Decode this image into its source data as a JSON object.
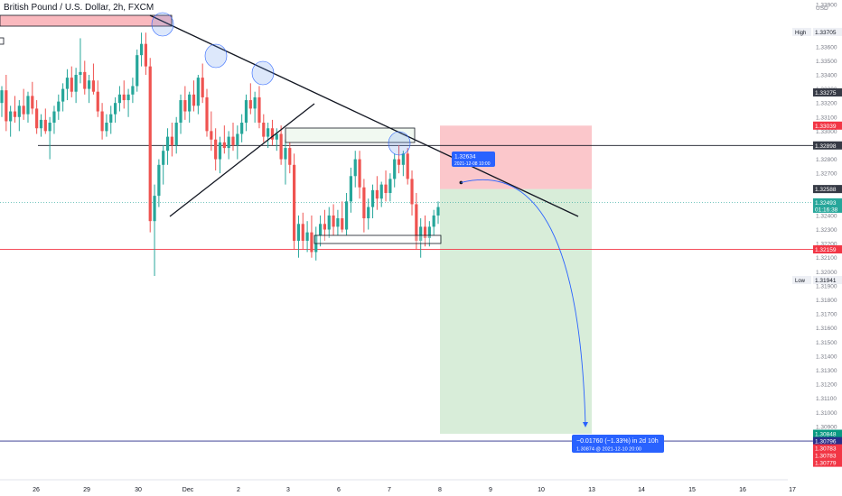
{
  "chart_data": {
    "type": "candlestick",
    "title": "British Pound / U.S. Dollar, 2h, FXCM",
    "currency": "USD",
    "ylim": [
      1.3076,
      1.339
    ],
    "x_ticks": [
      "26",
      "29",
      "30",
      "Dec",
      "2",
      "3",
      "6",
      "7",
      "8",
      "9",
      "10",
      "13",
      "14",
      "15",
      "16",
      "17"
    ],
    "y_ticks": [
      "1.33900",
      "1.33705",
      "1.33600",
      "1.33500",
      "1.33400",
      "1.33300",
      "1.33275",
      "1.33200",
      "1.33100",
      "1.33039",
      "1.33000",
      "1.32898",
      "1.32800",
      "1.32700",
      "1.32588",
      "1.32493",
      "1.32400",
      "1.32300",
      "1.32200",
      "1.32159",
      "1.32100",
      "1.32000",
      "1.31941",
      "1.31900",
      "1.31800",
      "1.31700",
      "1.31600",
      "1.31500",
      "1.31400",
      "1.31300",
      "1.31200",
      "1.31100",
      "1.31000",
      "1.30900",
      "1.30848",
      "1.30796",
      "1.30783",
      "1.30779"
    ],
    "badges": [
      {
        "label": "High",
        "value": "1.33705",
        "kind": "plain"
      },
      {
        "label": "",
        "value": "1.33275",
        "kind": "dark"
      },
      {
        "label": "",
        "value": "1.33039",
        "kind": "red"
      },
      {
        "label": "",
        "value": "1.32898",
        "kind": "dark"
      },
      {
        "label": "",
        "value": "1.32588",
        "kind": "dark"
      },
      {
        "label": "",
        "value": "1.32493",
        "sub": "01:16:38",
        "kind": "teal"
      },
      {
        "label": "",
        "value": "1.32159",
        "kind": "red"
      },
      {
        "label": "Low",
        "value": "1.31941",
        "kind": "plain"
      },
      {
        "label": "",
        "value": "1.30848",
        "kind": "green"
      },
      {
        "label": "",
        "value": "1.30796",
        "kind": "navy"
      },
      {
        "label": "",
        "value": "1.30783",
        "kind": "red"
      },
      {
        "label": "",
        "value": "1.30783",
        "kind": "red"
      },
      {
        "label": "",
        "value": "1.30779",
        "kind": "red"
      }
    ],
    "horizontal_levels": [
      {
        "value": 1.32898,
        "color": "#131722"
      },
      {
        "value": 1.32159,
        "color": "#f23645"
      },
      {
        "value": 1.30796,
        "color": "#2a2e8a"
      }
    ],
    "position": {
      "direction": "short",
      "entry": 1.32588,
      "stop": 1.33039,
      "target": 1.30848,
      "start_time": "2021-12-08 00:00",
      "end_time": "2021-12-13 00:00"
    },
    "entry_label": {
      "price": "1.32634",
      "time": "2021-12-08 10:00"
    },
    "target_label": {
      "change": "−0.01760 (−1.33%) in 2d 10h",
      "detail": "1.30874 @ 2021-12-10 20:00"
    },
    "candles": [
      {
        "o": 1.332,
        "h": 1.3332,
        "l": 1.331,
        "c": 1.3329
      },
      {
        "o": 1.3329,
        "h": 1.334,
        "l": 1.33,
        "c": 1.3307
      },
      {
        "o": 1.3307,
        "h": 1.3318,
        "l": 1.3296,
        "c": 1.3314
      },
      {
        "o": 1.3314,
        "h": 1.3325,
        "l": 1.3306,
        "c": 1.331
      },
      {
        "o": 1.331,
        "h": 1.3322,
        "l": 1.33,
        "c": 1.3318
      },
      {
        "o": 1.3318,
        "h": 1.333,
        "l": 1.3308,
        "c": 1.3312
      },
      {
        "o": 1.3312,
        "h": 1.3328,
        "l": 1.3306,
        "c": 1.3325
      },
      {
        "o": 1.3325,
        "h": 1.3335,
        "l": 1.3312,
        "c": 1.3316
      },
      {
        "o": 1.3316,
        "h": 1.3322,
        "l": 1.3298,
        "c": 1.3302
      },
      {
        "o": 1.3302,
        "h": 1.3312,
        "l": 1.3296,
        "c": 1.3308
      },
      {
        "o": 1.3308,
        "h": 1.3316,
        "l": 1.3298,
        "c": 1.33
      },
      {
        "o": 1.33,
        "h": 1.331,
        "l": 1.328,
        "c": 1.3306
      },
      {
        "o": 1.3306,
        "h": 1.3318,
        "l": 1.3298,
        "c": 1.3314
      },
      {
        "o": 1.3314,
        "h": 1.3326,
        "l": 1.3308,
        "c": 1.3321
      },
      {
        "o": 1.3321,
        "h": 1.3334,
        "l": 1.3314,
        "c": 1.333
      },
      {
        "o": 1.333,
        "h": 1.3344,
        "l": 1.3322,
        "c": 1.3338
      },
      {
        "o": 1.3338,
        "h": 1.3346,
        "l": 1.3324,
        "c": 1.3328
      },
      {
        "o": 1.3328,
        "h": 1.3345,
        "l": 1.332,
        "c": 1.334
      },
      {
        "o": 1.334,
        "h": 1.3366,
        "l": 1.3334,
        "c": 1.3342
      },
      {
        "o": 1.3342,
        "h": 1.335,
        "l": 1.3326,
        "c": 1.333
      },
      {
        "o": 1.333,
        "h": 1.334,
        "l": 1.332,
        "c": 1.3336
      },
      {
        "o": 1.3336,
        "h": 1.3348,
        "l": 1.3326,
        "c": 1.3328
      },
      {
        "o": 1.3328,
        "h": 1.3336,
        "l": 1.331,
        "c": 1.3314
      },
      {
        "o": 1.3314,
        "h": 1.332,
        "l": 1.3294,
        "c": 1.33
      },
      {
        "o": 1.33,
        "h": 1.3312,
        "l": 1.3296,
        "c": 1.3306
      },
      {
        "o": 1.3306,
        "h": 1.3318,
        "l": 1.3298,
        "c": 1.3312
      },
      {
        "o": 1.3312,
        "h": 1.3324,
        "l": 1.3306,
        "c": 1.332
      },
      {
        "o": 1.332,
        "h": 1.3332,
        "l": 1.3314,
        "c": 1.3326
      },
      {
        "o": 1.3326,
        "h": 1.3336,
        "l": 1.3316,
        "c": 1.3322
      },
      {
        "o": 1.3322,
        "h": 1.333,
        "l": 1.331,
        "c": 1.3326
      },
      {
        "o": 1.3326,
        "h": 1.3338,
        "l": 1.332,
        "c": 1.3332
      },
      {
        "o": 1.3332,
        "h": 1.3358,
        "l": 1.3328,
        "c": 1.3354
      },
      {
        "o": 1.3354,
        "h": 1.337,
        "l": 1.3346,
        "c": 1.3362
      },
      {
        "o": 1.3362,
        "h": 1.337,
        "l": 1.334,
        "c": 1.3346
      },
      {
        "o": 1.3346,
        "h": 1.3352,
        "l": 1.3228,
        "c": 1.3236
      },
      {
        "o": 1.3236,
        "h": 1.3262,
        "l": 1.3197,
        "c": 1.3254
      },
      {
        "o": 1.3254,
        "h": 1.328,
        "l": 1.3246,
        "c": 1.3276
      },
      {
        "o": 1.3276,
        "h": 1.329,
        "l": 1.3262,
        "c": 1.3286
      },
      {
        "o": 1.3286,
        "h": 1.3302,
        "l": 1.3276,
        "c": 1.3296
      },
      {
        "o": 1.3296,
        "h": 1.3306,
        "l": 1.3282,
        "c": 1.329
      },
      {
        "o": 1.329,
        "h": 1.331,
        "l": 1.3284,
        "c": 1.3306
      },
      {
        "o": 1.3306,
        "h": 1.3326,
        "l": 1.3298,
        "c": 1.3322
      },
      {
        "o": 1.3322,
        "h": 1.3332,
        "l": 1.3308,
        "c": 1.3314
      },
      {
        "o": 1.3314,
        "h": 1.3328,
        "l": 1.3306,
        "c": 1.3326
      },
      {
        "o": 1.3326,
        "h": 1.3336,
        "l": 1.3314,
        "c": 1.3318
      },
      {
        "o": 1.3318,
        "h": 1.334,
        "l": 1.3312,
        "c": 1.3338
      },
      {
        "o": 1.3338,
        "h": 1.3348,
        "l": 1.332,
        "c": 1.3324
      },
      {
        "o": 1.3324,
        "h": 1.333,
        "l": 1.3296,
        "c": 1.33
      },
      {
        "o": 1.33,
        "h": 1.3314,
        "l": 1.3286,
        "c": 1.3294
      },
      {
        "o": 1.3294,
        "h": 1.3302,
        "l": 1.3272,
        "c": 1.328
      },
      {
        "o": 1.328,
        "h": 1.3296,
        "l": 1.327,
        "c": 1.3292
      },
      {
        "o": 1.3292,
        "h": 1.3304,
        "l": 1.3284,
        "c": 1.3288
      },
      {
        "o": 1.3288,
        "h": 1.33,
        "l": 1.328,
        "c": 1.3296
      },
      {
        "o": 1.3296,
        "h": 1.3306,
        "l": 1.3286,
        "c": 1.329
      },
      {
        "o": 1.329,
        "h": 1.3304,
        "l": 1.328,
        "c": 1.3298
      },
      {
        "o": 1.3298,
        "h": 1.3312,
        "l": 1.3292,
        "c": 1.3306
      },
      {
        "o": 1.3306,
        "h": 1.3326,
        "l": 1.33,
        "c": 1.3322
      },
      {
        "o": 1.3322,
        "h": 1.3334,
        "l": 1.3312,
        "c": 1.3316
      },
      {
        "o": 1.3316,
        "h": 1.3328,
        "l": 1.3306,
        "c": 1.3324
      },
      {
        "o": 1.3324,
        "h": 1.3332,
        "l": 1.3302,
        "c": 1.3306
      },
      {
        "o": 1.3306,
        "h": 1.3312,
        "l": 1.3292,
        "c": 1.3296
      },
      {
        "o": 1.3296,
        "h": 1.3306,
        "l": 1.3288,
        "c": 1.3302
      },
      {
        "o": 1.3302,
        "h": 1.3308,
        "l": 1.329,
        "c": 1.3294
      },
      {
        "o": 1.3294,
        "h": 1.3302,
        "l": 1.3286,
        "c": 1.3298
      },
      {
        "o": 1.3298,
        "h": 1.3304,
        "l": 1.3276,
        "c": 1.328
      },
      {
        "o": 1.328,
        "h": 1.3294,
        "l": 1.3262,
        "c": 1.3288
      },
      {
        "o": 1.3288,
        "h": 1.3292,
        "l": 1.327,
        "c": 1.3276
      },
      {
        "o": 1.3276,
        "h": 1.3284,
        "l": 1.3216,
        "c": 1.3222
      },
      {
        "o": 1.3222,
        "h": 1.324,
        "l": 1.321,
        "c": 1.3234
      },
      {
        "o": 1.3234,
        "h": 1.3242,
        "l": 1.3216,
        "c": 1.3222
      },
      {
        "o": 1.3222,
        "h": 1.3236,
        "l": 1.3214,
        "c": 1.3228
      },
      {
        "o": 1.3228,
        "h": 1.324,
        "l": 1.321,
        "c": 1.3214
      },
      {
        "o": 1.3214,
        "h": 1.3232,
        "l": 1.3208,
        "c": 1.3226
      },
      {
        "o": 1.3226,
        "h": 1.324,
        "l": 1.3218,
        "c": 1.3234
      },
      {
        "o": 1.3234,
        "h": 1.3244,
        "l": 1.3222,
        "c": 1.323
      },
      {
        "o": 1.323,
        "h": 1.3246,
        "l": 1.3224,
        "c": 1.324
      },
      {
        "o": 1.324,
        "h": 1.3248,
        "l": 1.3226,
        "c": 1.3232
      },
      {
        "o": 1.3232,
        "h": 1.3244,
        "l": 1.3226,
        "c": 1.3238
      },
      {
        "o": 1.3238,
        "h": 1.325,
        "l": 1.3228,
        "c": 1.323
      },
      {
        "o": 1.323,
        "h": 1.3256,
        "l": 1.3226,
        "c": 1.325
      },
      {
        "o": 1.325,
        "h": 1.3274,
        "l": 1.3242,
        "c": 1.3268
      },
      {
        "o": 1.3268,
        "h": 1.3286,
        "l": 1.326,
        "c": 1.328
      },
      {
        "o": 1.328,
        "h": 1.3286,
        "l": 1.3252,
        "c": 1.326
      },
      {
        "o": 1.326,
        "h": 1.3266,
        "l": 1.3228,
        "c": 1.3238
      },
      {
        "o": 1.3238,
        "h": 1.3252,
        "l": 1.323,
        "c": 1.3246
      },
      {
        "o": 1.3246,
        "h": 1.3262,
        "l": 1.3238,
        "c": 1.3258
      },
      {
        "o": 1.3258,
        "h": 1.3268,
        "l": 1.3244,
        "c": 1.3252
      },
      {
        "o": 1.3252,
        "h": 1.3264,
        "l": 1.3246,
        "c": 1.3262
      },
      {
        "o": 1.3262,
        "h": 1.3272,
        "l": 1.325,
        "c": 1.3256
      },
      {
        "o": 1.3256,
        "h": 1.327,
        "l": 1.325,
        "c": 1.3266
      },
      {
        "o": 1.3266,
        "h": 1.3284,
        "l": 1.326,
        "c": 1.328
      },
      {
        "o": 1.328,
        "h": 1.329,
        "l": 1.327,
        "c": 1.3276
      },
      {
        "o": 1.3276,
        "h": 1.3286,
        "l": 1.3268,
        "c": 1.3284
      },
      {
        "o": 1.3284,
        "h": 1.3288,
        "l": 1.3262,
        "c": 1.3266
      },
      {
        "o": 1.3266,
        "h": 1.3272,
        "l": 1.324,
        "c": 1.3248
      },
      {
        "o": 1.3248,
        "h": 1.3256,
        "l": 1.3216,
        "c": 1.3222
      },
      {
        "o": 1.3222,
        "h": 1.3238,
        "l": 1.321,
        "c": 1.3232
      },
      {
        "o": 1.3232,
        "h": 1.324,
        "l": 1.3218,
        "c": 1.3224
      },
      {
        "o": 1.3224,
        "h": 1.3236,
        "l": 1.3218,
        "c": 1.3232
      },
      {
        "o": 1.3232,
        "h": 1.3244,
        "l": 1.3226,
        "c": 1.324
      },
      {
        "o": 1.324,
        "h": 1.325,
        "l": 1.3234,
        "c": 1.3246
      }
    ]
  }
}
